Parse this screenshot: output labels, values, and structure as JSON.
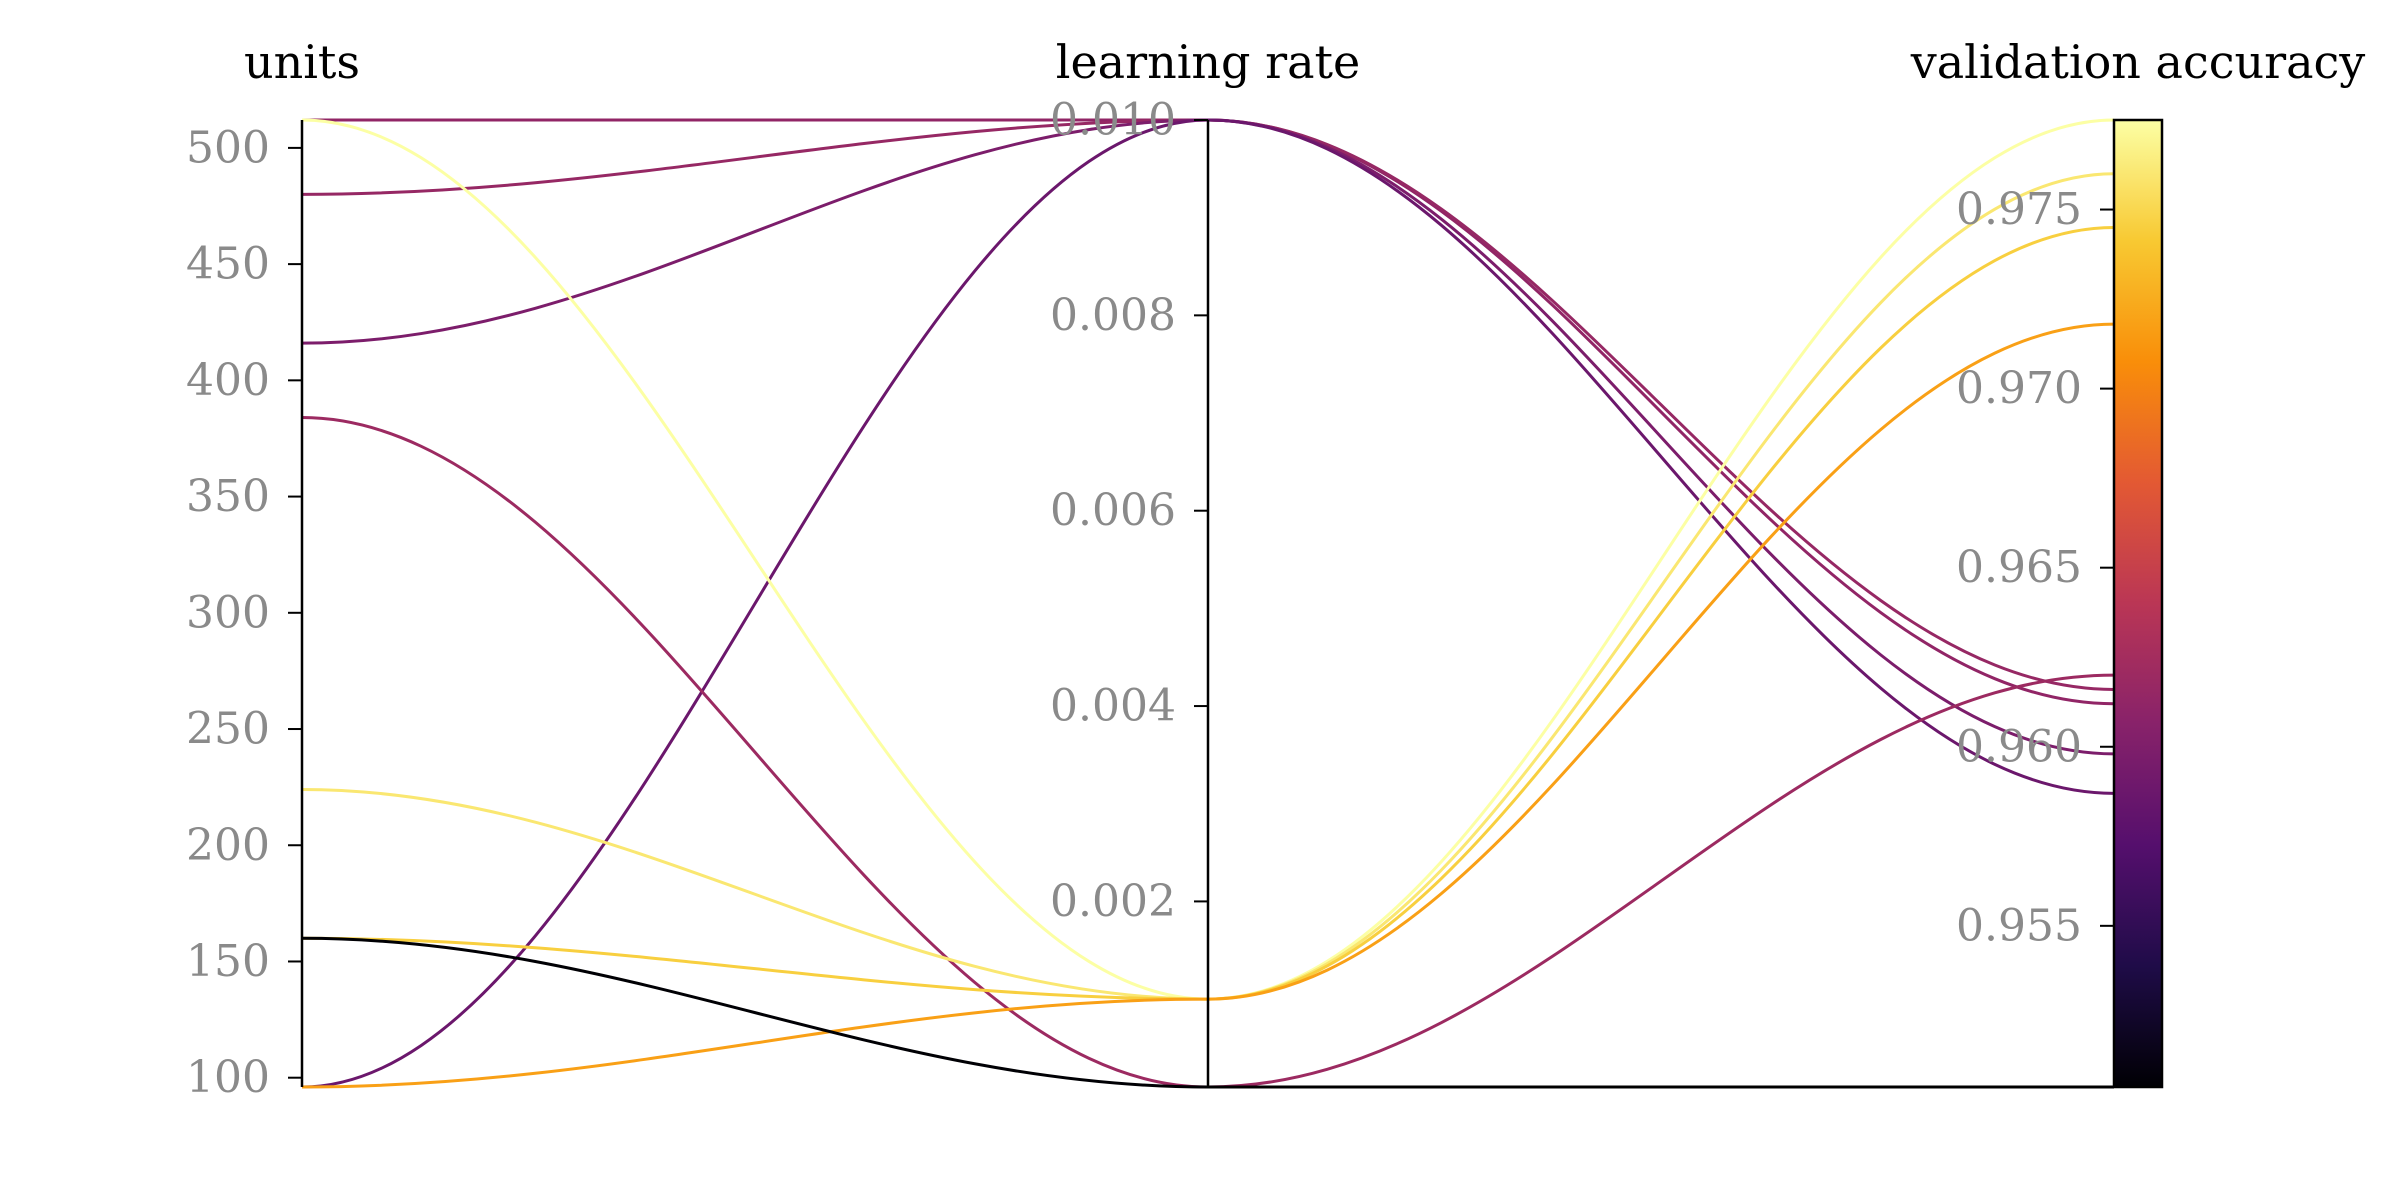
{
  "chart_data": {
    "type": "parallel_coordinates",
    "axes": [
      {
        "title": "units",
        "range": [
          96,
          512
        ],
        "ticks": [
          100,
          150,
          200,
          250,
          300,
          350,
          400,
          450,
          500
        ],
        "tick_labels": [
          "100",
          "150",
          "200",
          "250",
          "300",
          "350",
          "400",
          "450",
          "500"
        ]
      },
      {
        "title": "learning rate",
        "range": [
          0.0001,
          0.01
        ],
        "ticks": [
          0.002,
          0.004,
          0.006,
          0.008,
          0.01
        ],
        "tick_labels": [
          "0.002",
          "0.004",
          "0.006",
          "0.008",
          "0.010"
        ]
      },
      {
        "title": "validation accuracy",
        "range": [
          0.9505,
          0.9775
        ],
        "ticks": [
          0.955,
          0.96,
          0.965,
          0.97,
          0.975
        ],
        "tick_labels": [
          "0.955",
          "0.960",
          "0.965",
          "0.970",
          "0.975"
        ]
      }
    ],
    "colorbar": {
      "colormap": "inferno",
      "range": [
        0.9505,
        0.9775
      ],
      "stops": [
        "#000004",
        "#1f0c48",
        "#550f6d",
        "#88226a",
        "#ba3655",
        "#e35933",
        "#f98e09",
        "#f8c932",
        "#fcffa4"
      ]
    },
    "series": [
      {
        "units": 512,
        "learning_rate": 0.01,
        "validation_accuracy": 0.9612
      },
      {
        "units": 480,
        "learning_rate": 0.01,
        "validation_accuracy": 0.9616
      },
      {
        "units": 416,
        "learning_rate": 0.01,
        "validation_accuracy": 0.9598
      },
      {
        "units": 96,
        "learning_rate": 0.01,
        "validation_accuracy": 0.9587
      },
      {
        "units": 384,
        "learning_rate": 0.0001,
        "validation_accuracy": 0.962
      },
      {
        "units": 512,
        "learning_rate": 0.001,
        "validation_accuracy": 0.9775
      },
      {
        "units": 224,
        "learning_rate": 0.001,
        "validation_accuracy": 0.976
      },
      {
        "units": 160,
        "learning_rate": 0.001,
        "validation_accuracy": 0.9745
      },
      {
        "units": 96,
        "learning_rate": 0.001,
        "validation_accuracy": 0.9718
      },
      {
        "units": 160,
        "learning_rate": 0.0001,
        "validation_accuracy": 0.9505
      }
    ]
  }
}
